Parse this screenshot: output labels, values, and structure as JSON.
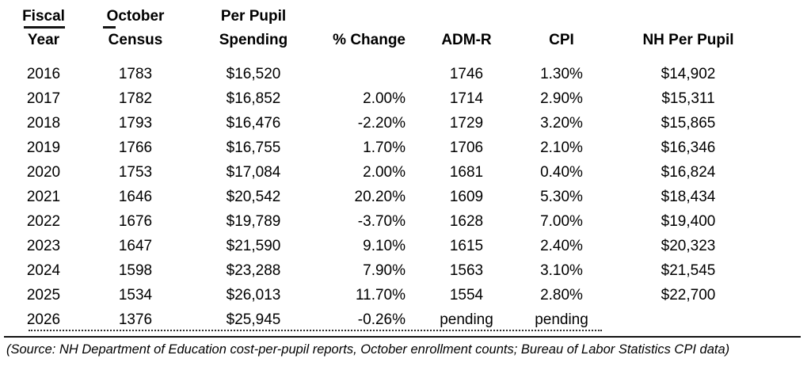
{
  "chart_data": {
    "type": "table",
    "columns": [
      {
        "line1": "Fiscal",
        "line2": "Year"
      },
      {
        "line1": "October",
        "line2": "Census"
      },
      {
        "line1": "Per Pupil",
        "line2": "Spending"
      },
      {
        "line1": "",
        "line2": "% Change"
      },
      {
        "line1": "",
        "line2": "ADM-R"
      },
      {
        "line1": "",
        "line2": "CPI"
      },
      {
        "line1": "",
        "line2": "NH Per Pupil"
      }
    ],
    "rows": [
      [
        "2016",
        "1783",
        "$16,520",
        "",
        "1746",
        "1.30%",
        "$14,902"
      ],
      [
        "2017",
        "1782",
        "$16,852",
        "2.00%",
        "1714",
        "2.90%",
        "$15,311"
      ],
      [
        "2018",
        "1793",
        "$16,476",
        "-2.20%",
        "1729",
        "3.20%",
        "$15,865"
      ],
      [
        "2019",
        "1766",
        "$16,755",
        "1.70%",
        "1706",
        "2.10%",
        "$16,346"
      ],
      [
        "2020",
        "1753",
        "$17,084",
        "2.00%",
        "1681",
        "0.40%",
        "$16,824"
      ],
      [
        "2021",
        "1646",
        "$20,542",
        "20.20%",
        "1609",
        "5.30%",
        "$18,434"
      ],
      [
        "2022",
        "1676",
        "$19,789",
        "-3.70%",
        "1628",
        "7.00%",
        "$19,400"
      ],
      [
        "2023",
        "1647",
        "$21,590",
        "9.10%",
        "1615",
        "2.40%",
        "$20,323"
      ],
      [
        "2024",
        "1598",
        "$23,288",
        "7.90%",
        "1563",
        "3.10%",
        "$21,545"
      ],
      [
        "2025",
        "1534",
        "$26,013",
        "11.70%",
        "1554",
        "2.80%",
        "$22,700"
      ],
      [
        "2026",
        "1376",
        "$25,945",
        "-0.26%",
        "pending",
        "pending",
        ""
      ]
    ]
  },
  "caption": "(Source: NH Department of Education cost-per-pupil reports, October enrollment counts; Bureau of Labor Statistics CPI data)",
  "colors": {
    "text": "#000000",
    "background": "#ffffff"
  }
}
